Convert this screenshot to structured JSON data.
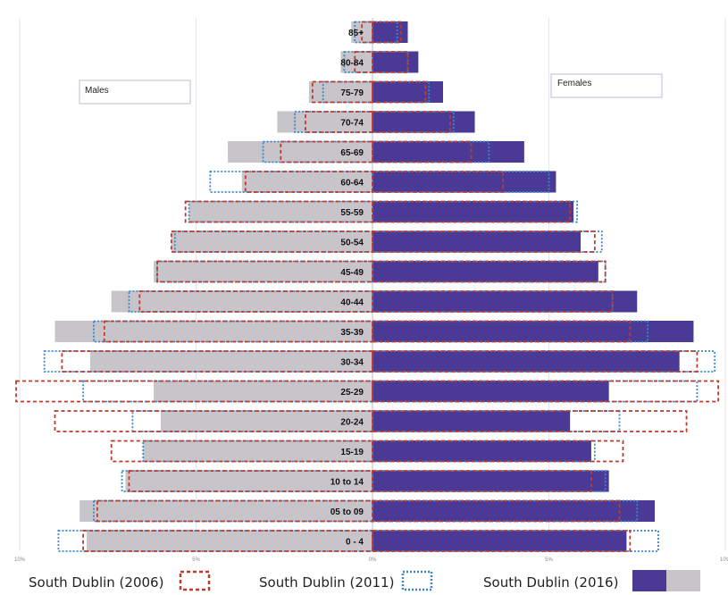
{
  "chart_data": {
    "type": "bar",
    "subtype": "population-pyramid",
    "categories": [
      "85+",
      "80-84",
      "75-79",
      "70-74",
      "65-69",
      "60-64",
      "55-59",
      "50-54",
      "45-49",
      "40-44",
      "35-39",
      "30-34",
      "25-29",
      "20-24",
      "15-19",
      "10 to 14",
      "05 to 09",
      "0 - 4"
    ],
    "sides": {
      "left": "Males",
      "right": "Females"
    },
    "x_ticks": [
      "10%",
      "5%",
      "0%",
      "5%",
      "10%"
    ],
    "xlim": [
      -10,
      10
    ],
    "series": [
      {
        "name": "South Dublin (2006)",
        "style": "dashed-outline",
        "color": "#c0392b",
        "male": [
          0.3,
          0.5,
          1.7,
          1.9,
          2.6,
          3.6,
          5.3,
          5.7,
          6.1,
          6.6,
          7.6,
          8.8,
          10.1,
          9.0,
          7.4,
          6.9,
          7.8,
          8.2
        ],
        "female": [
          0.8,
          1.0,
          1.5,
          2.2,
          2.8,
          3.7,
          5.6,
          6.3,
          6.6,
          6.8,
          7.3,
          9.2,
          9.8,
          8.9,
          7.1,
          6.2,
          7.0,
          7.3
        ]
      },
      {
        "name": "South Dublin (2011)",
        "style": "dotted-outline",
        "color": "#3a86c8",
        "male": [
          0.5,
          0.8,
          1.4,
          2.2,
          3.1,
          4.6,
          5.2,
          5.6,
          6.1,
          6.9,
          7.9,
          9.3,
          8.2,
          6.8,
          6.5,
          7.1,
          7.9,
          8.9
        ],
        "female": [
          0.7,
          1.0,
          1.6,
          2.3,
          3.3,
          5.0,
          5.8,
          6.5,
          6.6,
          6.8,
          7.8,
          9.7,
          9.2,
          7.0,
          6.3,
          6.6,
          7.5,
          8.1
        ]
      },
      {
        "name": "South Dublin (2016)",
        "style": "filled",
        "color_female": "#4b3a95",
        "color_male": "#c8c5ca",
        "male": [
          0.6,
          0.9,
          1.8,
          2.7,
          4.1,
          3.7,
          5.2,
          5.7,
          6.2,
          7.4,
          9.0,
          8.0,
          6.2,
          6.0,
          6.5,
          7.0,
          8.3,
          8.1
        ],
        "female": [
          1.0,
          1.3,
          2.0,
          2.9,
          4.3,
          5.2,
          5.7,
          5.9,
          6.4,
          7.5,
          9.1,
          8.7,
          6.7,
          5.6,
          6.2,
          6.7,
          8.0,
          7.2
        ]
      }
    ],
    "legend": {
      "placement": "bottom",
      "items": [
        "South Dublin (2006)",
        "South Dublin (2011)",
        "South Dublin (2016)"
      ]
    },
    "grid": true
  }
}
